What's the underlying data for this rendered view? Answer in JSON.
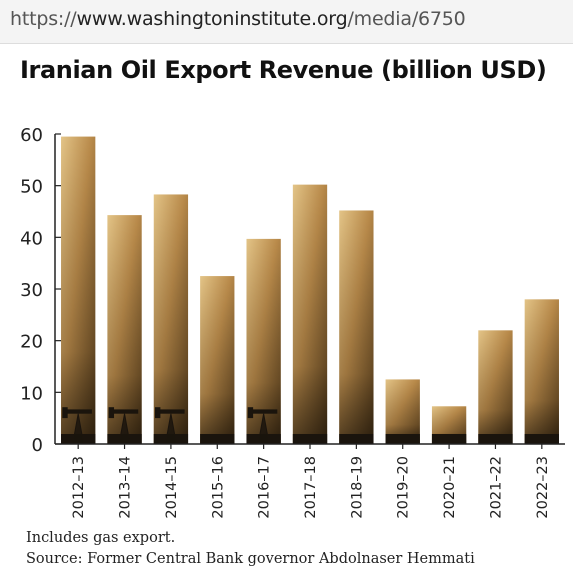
{
  "browser": {
    "url_prefix": "https://",
    "url_host": "www.washingtoninstitute.org",
    "url_path": "/media/6750"
  },
  "chart_data": {
    "type": "bar",
    "title": "Iranian Oil Export Revenue (billion USD)",
    "xlabel": "",
    "ylabel": "",
    "ylim": [
      0,
      60
    ],
    "yticks": [
      0,
      10,
      20,
      30,
      40,
      50,
      60
    ],
    "grid": false,
    "categories": [
      "2012–13",
      "2013–14",
      "2014–15",
      "2015–16",
      "2016–17",
      "2017–18",
      "2018–19",
      "2019–20",
      "2020–21",
      "2021–22",
      "2022–23"
    ],
    "values": [
      59.5,
      44.3,
      48.3,
      32.5,
      39.7,
      50.2,
      45.2,
      12.5,
      7.3,
      22.0,
      28.0
    ],
    "colors": {
      "bar_light": "#d9b877",
      "bar_mid": "#a8793c",
      "bar_dark": "#4a3317",
      "silhouette": "#1a140d",
      "axis": "#222222"
    }
  },
  "notes": {
    "line1": "Includes gas export.",
    "line2": "Source: Former Central Bank governor Abdolnaser Hemmati"
  }
}
